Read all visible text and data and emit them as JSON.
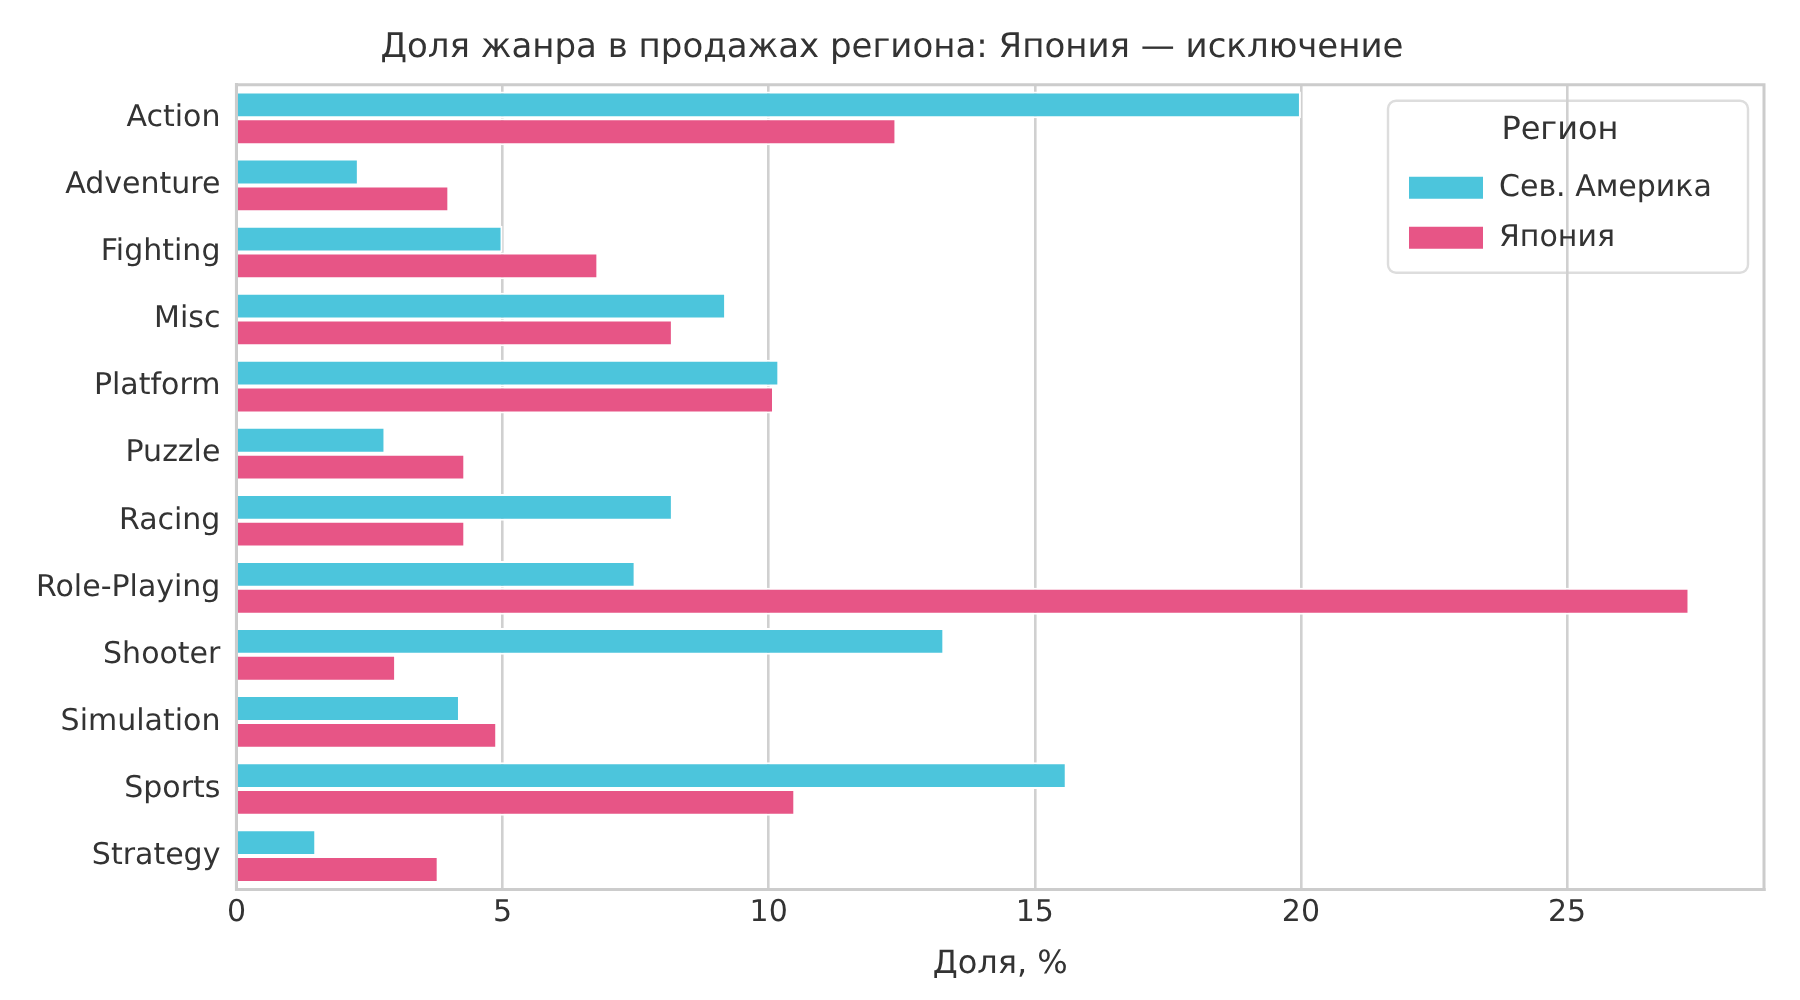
{
  "chart_data": {
    "type": "bar",
    "orientation": "horizontal",
    "title": "Доля жанра в продажах региона: Япония — исключение",
    "xlabel": "Доля, %",
    "legend_title": "Регион",
    "legend": "top right",
    "grid": "x",
    "categories": [
      "Action",
      "Adventure",
      "Fighting",
      "Misc",
      "Platform",
      "Puzzle",
      "Racing",
      "Role-Playing",
      "Shooter",
      "Simulation",
      "Sports",
      "Strategy"
    ],
    "xlim": [
      0,
      28.7
    ],
    "xticks": [
      0,
      5,
      10,
      15,
      20,
      25
    ],
    "series": [
      {
        "name": "Сев. Америка",
        "color": "#4cc5dc",
        "values": [
          20.0,
          2.3,
          5.0,
          9.2,
          10.2,
          2.8,
          8.2,
          7.5,
          13.3,
          4.2,
          15.6,
          1.5
        ]
      },
      {
        "name": "Япония",
        "color": "#e75586",
        "values": [
          12.4,
          4.0,
          6.8,
          8.2,
          10.1,
          4.3,
          4.3,
          27.3,
          3.0,
          4.9,
          10.5,
          3.8
        ]
      }
    ]
  }
}
